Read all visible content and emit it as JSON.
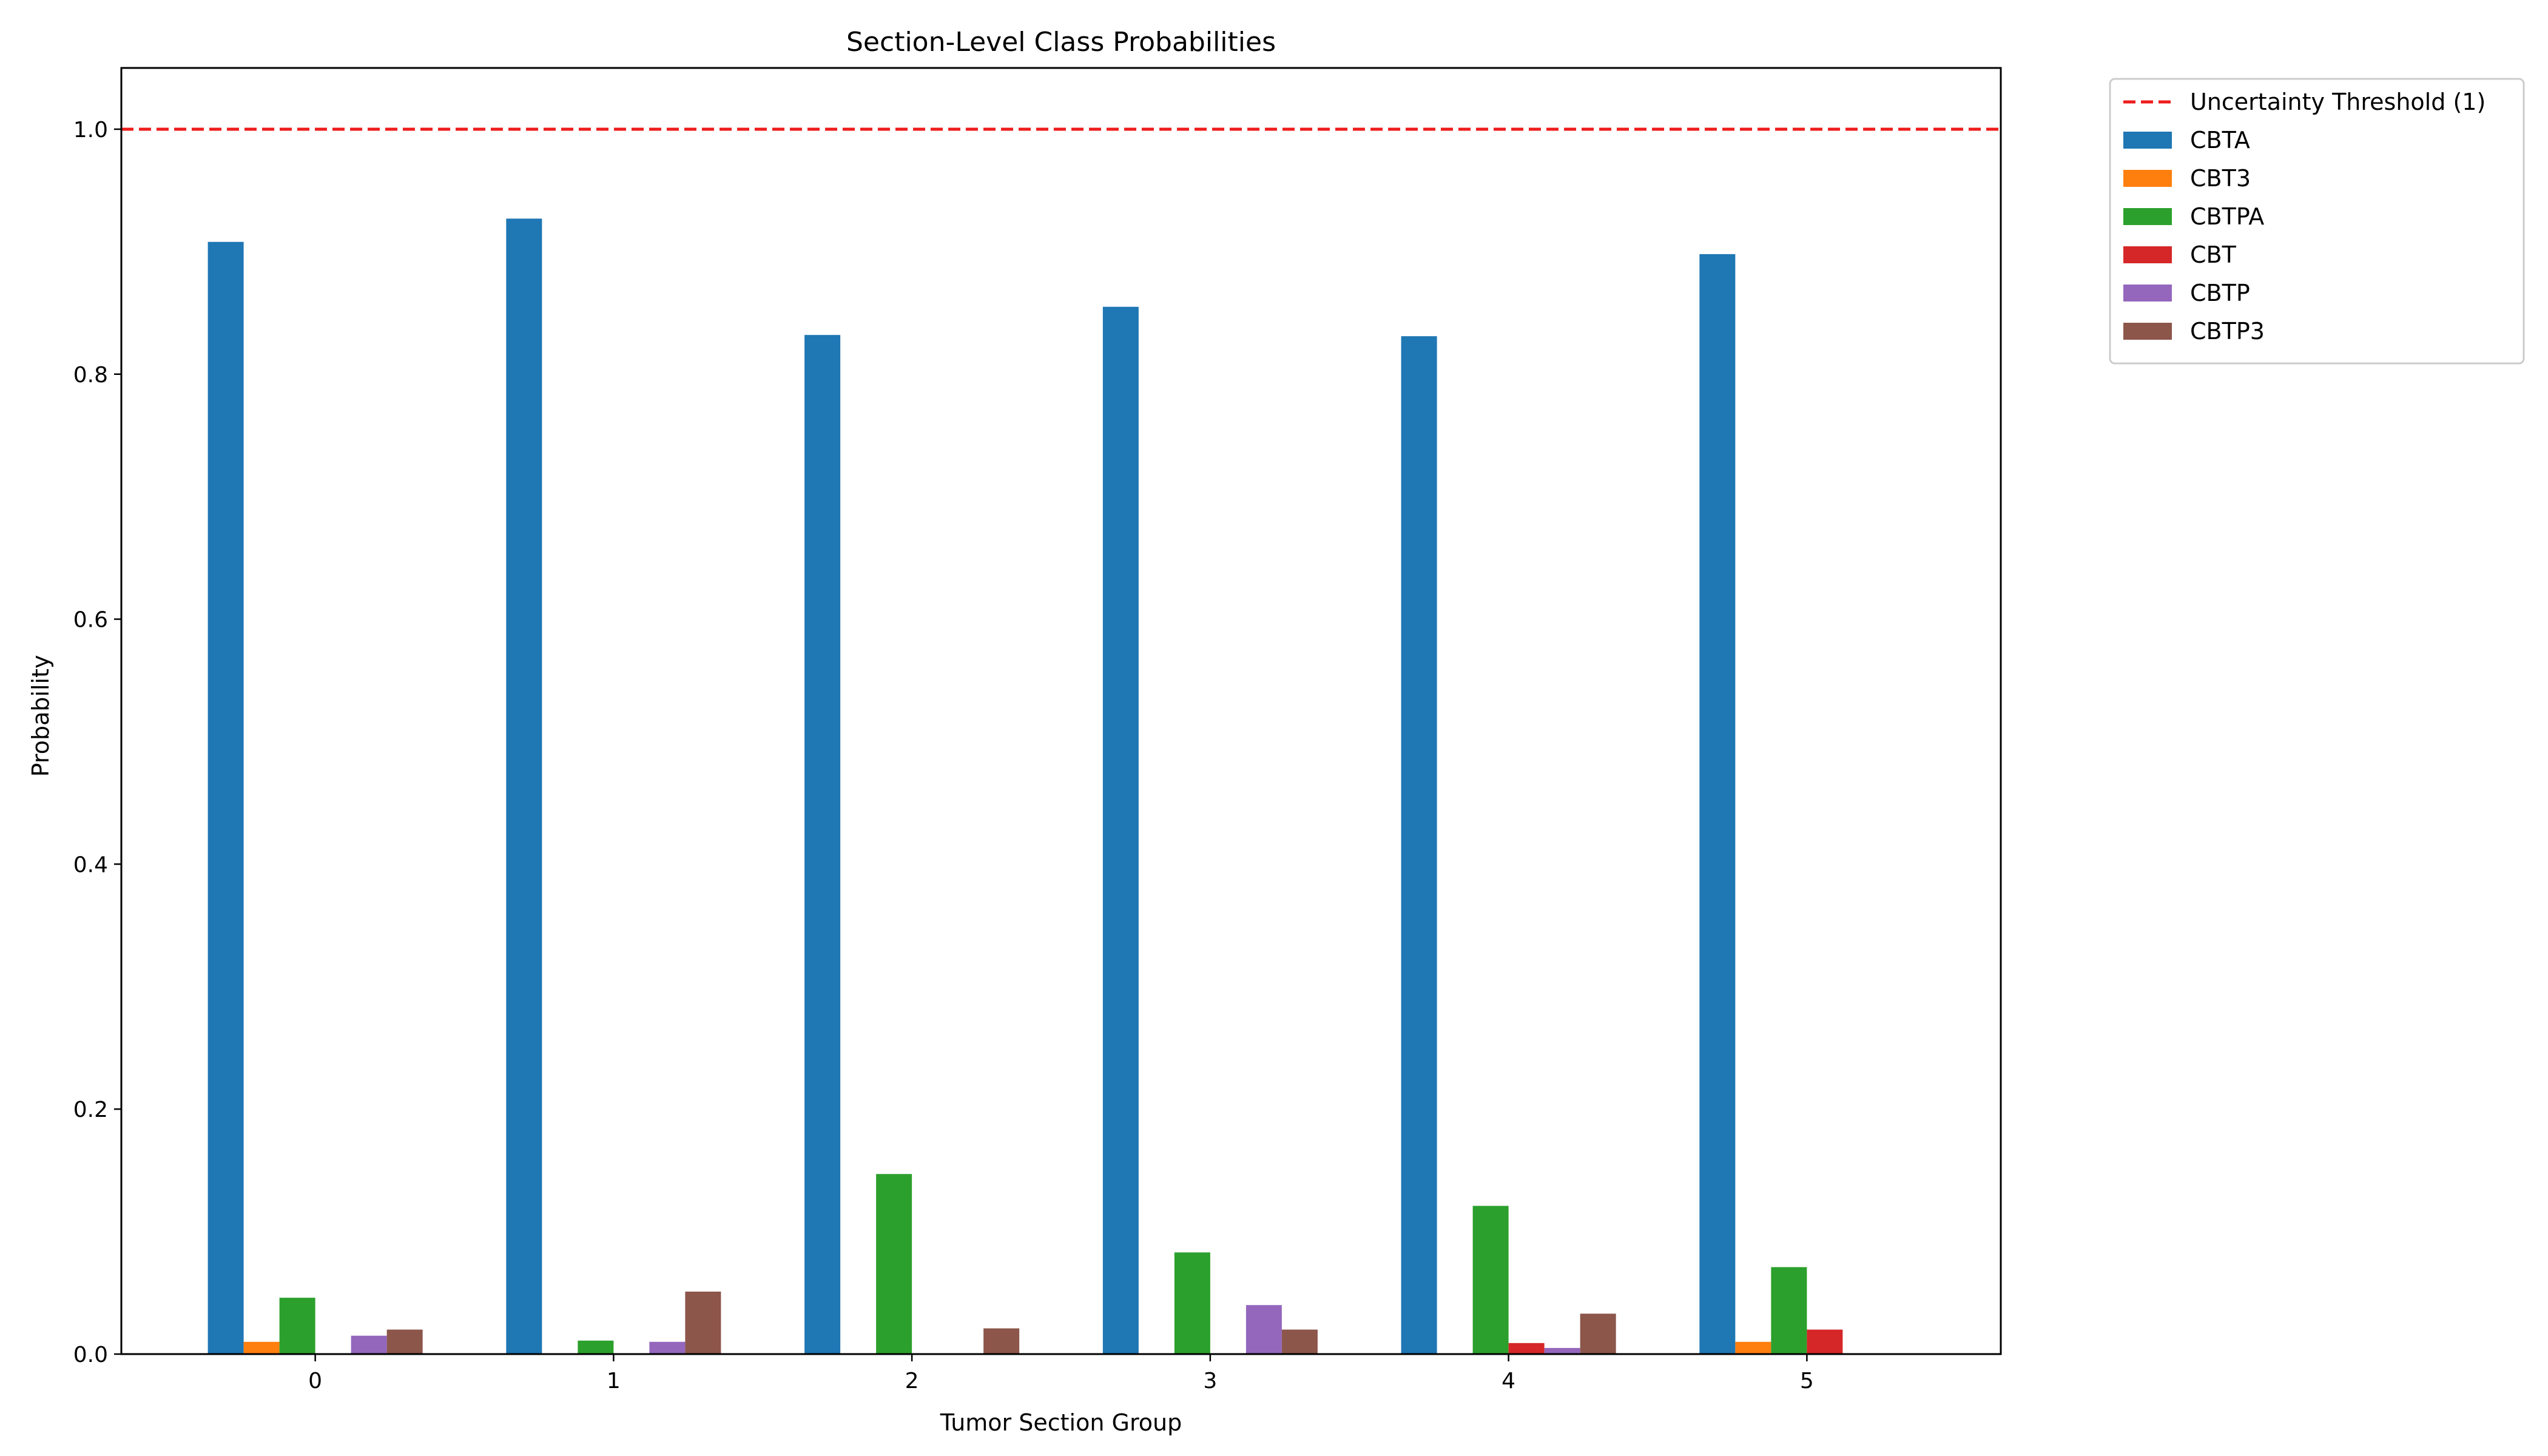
{
  "chart_data": {
    "type": "bar",
    "title": "Section-Level Class Probabilities",
    "xlabel": "Tumor Section Group",
    "ylabel": "Probability",
    "categories": [
      "0",
      "1",
      "2",
      "3",
      "4",
      "5"
    ],
    "ylim": [
      0,
      1.05
    ],
    "yticks": [
      "0.0",
      "0.2",
      "0.4",
      "0.6",
      "0.8",
      "1.0"
    ],
    "grid": false,
    "legend_position": "outside-top-right",
    "threshold": {
      "label": "Uncertainty Threshold (1)",
      "value": 1.0,
      "color": "#ee1c1c",
      "style": "dashed"
    },
    "series": [
      {
        "name": "CBTA",
        "color": "#1f77b4",
        "values": [
          0.908,
          0.927,
          0.832,
          0.855,
          0.831,
          0.898
        ]
      },
      {
        "name": "CBT3",
        "color": "#ff7f0e",
        "values": [
          0.01,
          0,
          0,
          0,
          0,
          0.01
        ]
      },
      {
        "name": "CBTPA",
        "color": "#2ca02c",
        "values": [
          0.046,
          0.011,
          0.147,
          0.083,
          0.121,
          0.071
        ]
      },
      {
        "name": "CBT",
        "color": "#d62728",
        "values": [
          0,
          0,
          0,
          0,
          0.009,
          0.02
        ]
      },
      {
        "name": "CBTP",
        "color": "#9467bd",
        "values": [
          0.015,
          0.01,
          0,
          0.04,
          0.005,
          0
        ]
      },
      {
        "name": "CBTP3",
        "color": "#8c564b",
        "values": [
          0.02,
          0.051,
          0.021,
          0.02,
          0.033,
          0
        ]
      }
    ]
  }
}
